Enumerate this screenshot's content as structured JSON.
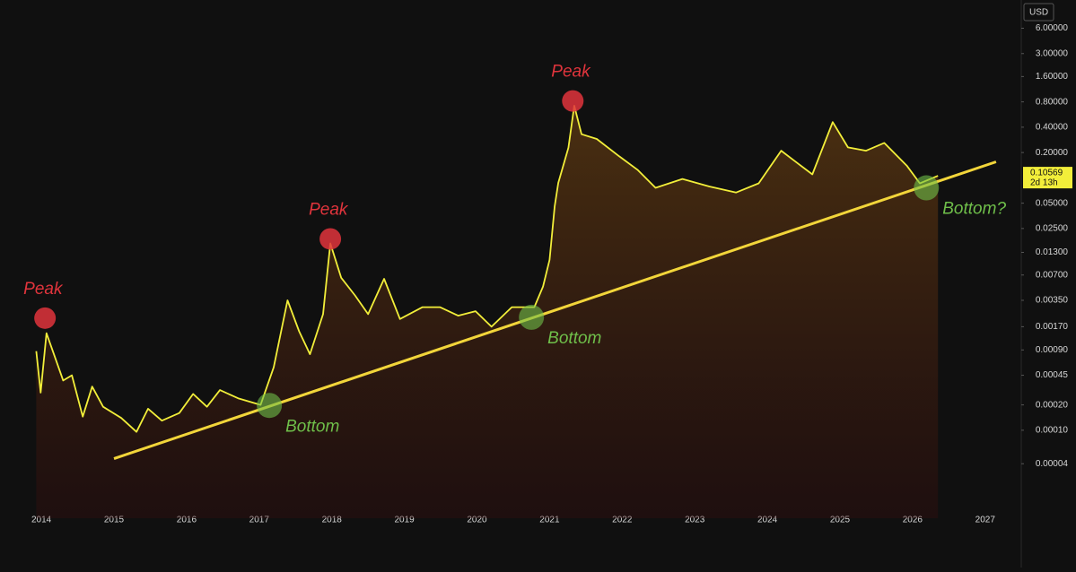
{
  "chart_data": {
    "type": "line",
    "currency": "USD",
    "log_scale": true,
    "grid": false,
    "x": [
      2013.93,
      2013.99,
      2014.07,
      2014.17,
      2014.3,
      2014.42,
      2014.57,
      2014.7,
      2014.85,
      2015.1,
      2015.31,
      2015.47,
      2015.66,
      2015.9,
      2016.09,
      2016.28,
      2016.46,
      2016.71,
      2017.02,
      2017.2,
      2017.39,
      2017.55,
      2017.7,
      2017.88,
      2017.98,
      2018.13,
      2018.32,
      2018.5,
      2018.72,
      2018.94,
      2019.25,
      2019.49,
      2019.74,
      2019.98,
      2020.2,
      2020.48,
      2020.79,
      2020.91,
      2021.0,
      2021.07,
      2021.12,
      2021.26,
      2021.34,
      2021.44,
      2021.65,
      2021.96,
      2022.21,
      2022.46,
      2022.83,
      2023.2,
      2023.57,
      2023.88,
      2024.19,
      2024.37,
      2024.62,
      2024.9,
      2025.11,
      2025.36,
      2025.61,
      2025.92,
      2026.1,
      2026.35
    ],
    "series": [
      {
        "color": "#f2ee3a",
        "values": [
          0.00087,
          0.00028,
          0.00142,
          0.00081,
          0.00039,
          0.00045,
          0.000145,
          0.00033,
          0.00019,
          0.00014,
          9.55e-05,
          0.00018,
          0.00013,
          0.00016,
          0.00027,
          0.00019,
          0.0003,
          0.00024,
          0.0002,
          0.00056,
          0.0035,
          0.0015,
          0.0008,
          0.0024,
          0.0166,
          0.0065,
          0.004,
          0.0024,
          0.0063,
          0.0021,
          0.0029,
          0.0029,
          0.0023,
          0.0026,
          0.0017,
          0.0029,
          0.0029,
          0.0051,
          0.0106,
          0.046,
          0.087,
          0.228,
          0.72,
          0.33,
          0.29,
          0.18,
          0.125,
          0.076,
          0.097,
          0.079,
          0.067,
          0.086,
          0.21,
          0.16,
          0.11,
          0.46,
          0.23,
          0.21,
          0.26,
          0.14,
          0.086,
          0.10569
        ]
      }
    ],
    "last_price_label": "0.10569",
    "countdown": "2d 13h",
    "xlim": [
      2013.43,
      2027.46
    ],
    "xticks": [
      2014,
      2015,
      2016,
      2017,
      2018,
      2019,
      2020,
      2021,
      2022,
      2023,
      2024,
      2025,
      2026,
      2027
    ],
    "ylim": [
      9e-06,
      13
    ],
    "yticks": [
      {
        "value": 6,
        "label": "6.00000"
      },
      {
        "value": 3,
        "label": "3.00000"
      },
      {
        "value": 1.6,
        "label": "1.60000"
      },
      {
        "value": 0.8,
        "label": "0.80000"
      },
      {
        "value": 0.4,
        "label": "0.40000"
      },
      {
        "value": 0.2,
        "label": "0.20000"
      },
      {
        "value": 0.05,
        "label": "0.05000"
      },
      {
        "value": 0.025,
        "label": "0.02500"
      },
      {
        "value": 0.013,
        "label": "0.01300"
      },
      {
        "value": 0.007,
        "label": "0.00700"
      },
      {
        "value": 0.0035,
        "label": "0.00350"
      },
      {
        "value": 0.0017,
        "label": "0.00170"
      },
      {
        "value": 0.0009,
        "label": "0.00090"
      },
      {
        "value": 0.00045,
        "label": "0.00045"
      },
      {
        "value": 0.0002,
        "label": "0.00020"
      },
      {
        "value": 0.0001,
        "label": "0.00010"
      },
      {
        "value": 4e-05,
        "label": "0.00004"
      }
    ],
    "trendline": {
      "color": "#f2d53a",
      "x": [
        2015.0,
        2027.15
      ],
      "values": [
        4.6e-05,
        0.155
      ]
    },
    "annotations": [
      {
        "text": "Peak",
        "x": 2014.05,
        "y": 0.00215,
        "color": "#e0343c",
        "kind": "peak"
      },
      {
        "text": "Peak",
        "x": 2017.98,
        "y": 0.0188,
        "color": "#e0343c",
        "kind": "peak"
      },
      {
        "text": "Peak",
        "x": 2021.32,
        "y": 0.82,
        "color": "#e0343c",
        "kind": "peak"
      },
      {
        "text": "Bottom",
        "x": 2017.14,
        "y": 0.000197,
        "color": "#6fbf4a",
        "kind": "bottom"
      },
      {
        "text": "Bottom",
        "x": 2020.75,
        "y": 0.0022,
        "color": "#6fbf4a",
        "kind": "bottom"
      },
      {
        "text": "Bottom?",
        "x": 2026.19,
        "y": 0.076,
        "color": "#6fbf4a",
        "kind": "bottom"
      }
    ]
  }
}
